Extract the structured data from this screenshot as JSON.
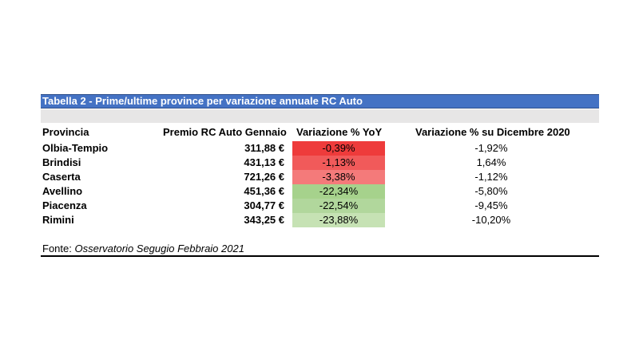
{
  "title": "Tabella 2 - Prime/ultime province per variazione annuale RC Auto",
  "headers": {
    "provincia": "Provincia",
    "premio": "Premio RC Auto Gennaio",
    "variazione_yoy": "Variazione % YoY",
    "variazione_dic": "Variazione % su Dicembre 2020"
  },
  "rows": [
    {
      "provincia": "Olbia-Tempio",
      "premio": "311,88 €",
      "variazione_yoy": "-0,39%",
      "variazione_dic": "-1,92%",
      "color": "#ee3b3b"
    },
    {
      "provincia": "Brindisi",
      "premio": "431,13 €",
      "variazione_yoy": "-1,13%",
      "variazione_dic": "1,64%",
      "color": "#f15a5a"
    },
    {
      "provincia": "Caserta",
      "premio": "721,26 €",
      "variazione_yoy": "-3,38%",
      "variazione_dic": "-1,12%",
      "color": "#f47a7a"
    },
    {
      "provincia": "Avellino",
      "premio": "451,36 €",
      "variazione_yoy": "-22,34%",
      "variazione_dic": "-5,80%",
      "color": "#a6d28c"
    },
    {
      "provincia": "Piacenza",
      "premio": "304,77 €",
      "variazione_yoy": "-22,54%",
      "variazione_dic": "-9,45%",
      "color": "#b1d79c"
    },
    {
      "provincia": "Rimini",
      "premio": "343,25 €",
      "variazione_yoy": "-23,88%",
      "variazione_dic": "-10,20%",
      "color": "#c6e2b4"
    }
  ],
  "source": {
    "label": "Fonte:",
    "text": "Osservatorio Segugio Febbraio 2021"
  }
}
